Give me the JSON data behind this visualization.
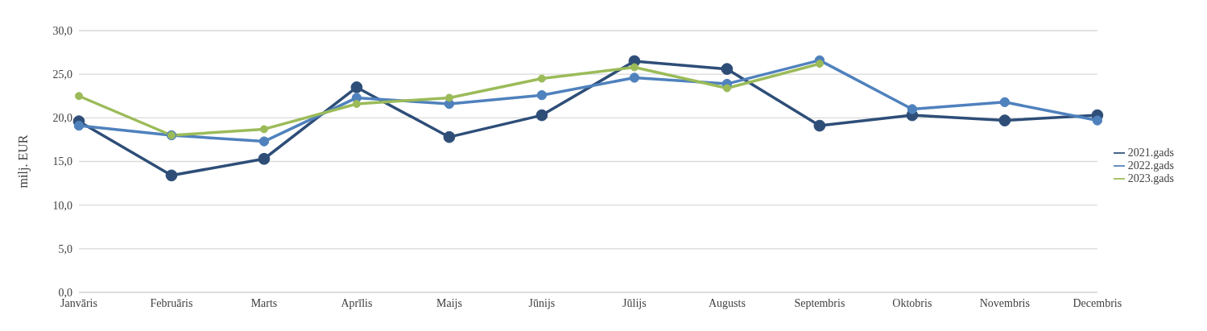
{
  "chart_data": {
    "type": "line",
    "ylabel": "milj. EUR",
    "categories": [
      "Janvāris",
      "Februāris",
      "Marts",
      "Aprīlis",
      "Maijs",
      "Jūnijs",
      "Jūlijs",
      "Augusts",
      "Septembris",
      "Oktobris",
      "Novembris",
      "Decembris"
    ],
    "series": [
      {
        "name": "2021.gads",
        "color": "#2e4e78",
        "values": [
          19.6,
          13.4,
          15.3,
          23.5,
          17.8,
          20.3,
          26.5,
          25.6,
          19.1,
          20.3,
          19.7,
          20.3
        ]
      },
      {
        "name": "2022.gads",
        "color": "#4f81bd",
        "values": [
          19.1,
          18.0,
          17.3,
          22.3,
          21.6,
          22.6,
          24.6,
          23.9,
          26.6,
          21.0,
          21.8,
          19.7
        ]
      },
      {
        "name": "2023.gads",
        "color": "#9bbb59",
        "values": [
          22.5,
          18.0,
          18.7,
          21.6,
          22.3,
          24.5,
          25.8,
          23.4,
          26.2,
          null,
          null,
          null
        ]
      }
    ],
    "ylim": [
      0,
      30
    ],
    "yticks": [
      {
        "value": 0,
        "label": "0,0"
      },
      {
        "value": 5,
        "label": "5,0"
      },
      {
        "value": 10,
        "label": "10,0"
      },
      {
        "value": 15,
        "label": "15,0"
      },
      {
        "value": 20,
        "label": "20,0"
      },
      {
        "value": 25,
        "label": "25,0"
      },
      {
        "value": 30,
        "label": "30,0"
      }
    ],
    "grid": "y",
    "legend": "right",
    "marker": "circle",
    "line_style": "solid"
  }
}
